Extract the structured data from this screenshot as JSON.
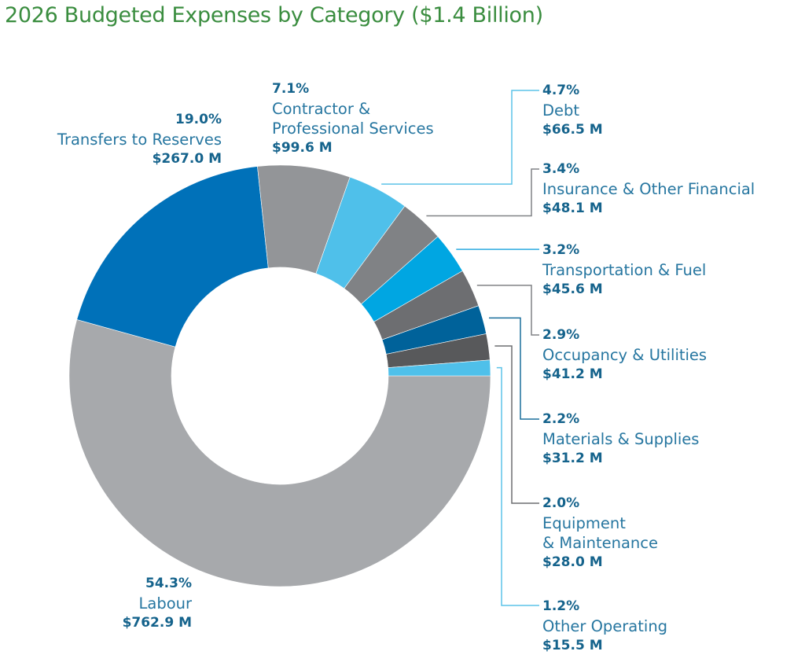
{
  "title": "2026 Budgeted Expenses by Category ($1.4 Billion)",
  "chart_data": {
    "type": "pie",
    "variant": "donut",
    "title": "2026 Budgeted Expenses by Category ($1.4 Billion)",
    "total": "$1.4 Billion",
    "start": "3 o'clock, clockwise",
    "slices": [
      {
        "name": "Labour",
        "percent": 54.3,
        "value_m": 762.9,
        "pct_label": "54.3%",
        "amount_label": "$762.9 M",
        "color": "#a7a9ac",
        "line_color": null
      },
      {
        "name": "Transfers to Reserves",
        "percent": 19.0,
        "value_m": 267.0,
        "pct_label": "19.0%",
        "amount_label": "$267.0 M",
        "color": "#0071b9",
        "line_color": null
      },
      {
        "name": "Contractor &\nProfessional Services",
        "percent": 7.1,
        "value_m": 99.6,
        "pct_label": "7.1%",
        "amount_label": "$99.6 M",
        "color": "#939598",
        "line_color": null
      },
      {
        "name": "Debt",
        "percent": 4.7,
        "value_m": 66.5,
        "pct_label": "4.7%",
        "amount_label": "$66.5 M",
        "color": "#4fc0ea",
        "line_color": "#5cc3e8"
      },
      {
        "name": "Insurance & Other Financial",
        "percent": 3.4,
        "value_m": 48.1,
        "pct_label": "3.4%",
        "amount_label": "$48.1 M",
        "color": "#808285",
        "line_color": "#808285"
      },
      {
        "name": "Transportation & Fuel",
        "percent": 3.2,
        "value_m": 45.6,
        "pct_label": "3.2%",
        "amount_label": "$45.6 M",
        "color": "#00a6e2",
        "line_color": "#2aa9df"
      },
      {
        "name": "Occupancy & Utilities",
        "percent": 2.9,
        "value_m": 41.2,
        "pct_label": "2.9%",
        "amount_label": "$41.2 M",
        "color": "#6d6e71",
        "line_color": "#808285"
      },
      {
        "name": "Materials & Supplies",
        "percent": 2.2,
        "value_m": 31.2,
        "pct_label": "2.2%",
        "amount_label": "$31.2 M",
        "color": "#00629a",
        "line_color": "#1a6f9c"
      },
      {
        "name": "Equipment\n& Maintenance",
        "percent": 2.0,
        "value_m": 28.0,
        "pct_label": "2.0%",
        "amount_label": "$28.0 M",
        "color": "#58595b",
        "line_color": "#6d6e71"
      },
      {
        "name": "Other Operating",
        "percent": 1.2,
        "value_m": 15.5,
        "pct_label": "1.2%",
        "amount_label": "$15.5 M",
        "color": "#4fc0ea",
        "line_color": "#5cc3e8"
      }
    ]
  }
}
